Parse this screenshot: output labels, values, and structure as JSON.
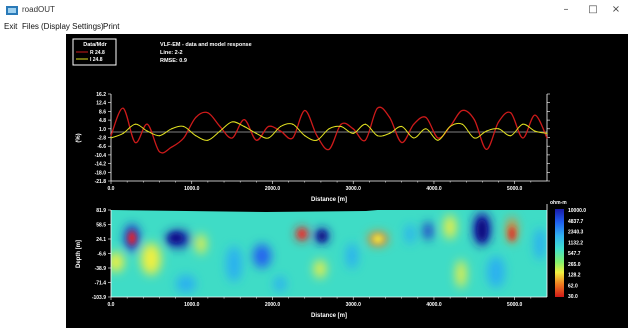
{
  "window": {
    "title": "roadOUT",
    "minimize_glyph": "–",
    "maximize_glyph": "□",
    "close_glyph": "×"
  },
  "menu": {
    "items": [
      "Exit",
      "Files",
      "(Display Settings)",
      "Print"
    ]
  },
  "plot": {
    "legend": {
      "title": "Data/Mdr",
      "entries": [
        "R 24.8",
        "I 24.8"
      ]
    },
    "header": {
      "title": "VLF-EM - data and model response",
      "line": "Line: 2-2",
      "rmse": "RMSE: 0.9"
    },
    "top_chart": {
      "ylabel": "(%)",
      "xlabel": "Distance [m]",
      "ytick_labels": [
        "16.2",
        "12.4",
        "8.6",
        "4.8",
        "1.0",
        "-2.8",
        "-6.6",
        "-10.4",
        "-14.2",
        "-18.0",
        "-21.8"
      ],
      "xtick_labels": [
        "0.0",
        "1000.0",
        "2000.0",
        "3000.0",
        "4000.0",
        "5000.0"
      ]
    },
    "bottom_chart": {
      "ylabel": "Depth [m]",
      "xlabel": "Distance [m]",
      "ytick_labels": [
        "81.9",
        "58.5",
        "24.1",
        "-6.6",
        "-38.9",
        "-71.4",
        "-103.9"
      ],
      "xtick_labels": [
        "0.0",
        "1000.0",
        "2000.0",
        "3000.0",
        "4000.0",
        "5000.0"
      ]
    },
    "colorbar": {
      "unit": "ohm-m",
      "labels": [
        "10000.0",
        "4837.7",
        "2340.3",
        "1132.2",
        "547.7",
        "265.0",
        "128.2",
        "62.0",
        "30.0"
      ]
    }
  },
  "chart_data": [
    {
      "type": "line",
      "title": "VLF-EM - data and model response",
      "xlabel": "Distance [m]",
      "ylabel": "(%)",
      "xlim": [
        0,
        5400
      ],
      "ylim": [
        -21.8,
        16.2
      ],
      "grid": false,
      "legend": "top-left",
      "x": [
        0,
        150,
        300,
        450,
        600,
        750,
        900,
        1050,
        1200,
        1350,
        1500,
        1650,
        1800,
        1950,
        2100,
        2250,
        2400,
        2550,
        2700,
        2850,
        3000,
        3150,
        3300,
        3450,
        3600,
        3750,
        3900,
        4050,
        4200,
        4350,
        4500,
        4650,
        4800,
        4950,
        5100,
        5250,
        5400
      ],
      "series": [
        {
          "name": "R",
          "color": "#cc1a1a",
          "values": [
            -2,
            10,
            -5,
            3,
            -9,
            -7,
            -3,
            6,
            8,
            2,
            -3,
            5,
            -4,
            2,
            0,
            -3,
            9,
            -2,
            -8,
            3,
            1,
            -4,
            10,
            6,
            -5,
            3,
            6,
            -3,
            2,
            9,
            5,
            -8,
            4,
            8,
            -3,
            7,
            -3
          ]
        },
        {
          "name": "I",
          "color": "#e0e020",
          "values": [
            -3,
            -1,
            3,
            0,
            -2,
            1,
            2,
            -2,
            -4,
            0,
            4,
            2,
            -1,
            -3,
            2,
            3,
            -2,
            -4,
            1,
            2,
            -1,
            3,
            -2,
            -1,
            2,
            -3,
            1,
            -4,
            2,
            3,
            -3,
            0,
            1,
            -2,
            3,
            0,
            -1
          ]
        }
      ]
    },
    {
      "type": "heatmap",
      "xlabel": "Distance [m]",
      "ylabel": "Depth [m]",
      "xlim": [
        0,
        5400
      ],
      "ylim": [
        -103.9,
        81.9
      ],
      "colorbar_unit": "ohm-m",
      "colorbar_range": [
        30.0,
        10000.0
      ]
    }
  ]
}
